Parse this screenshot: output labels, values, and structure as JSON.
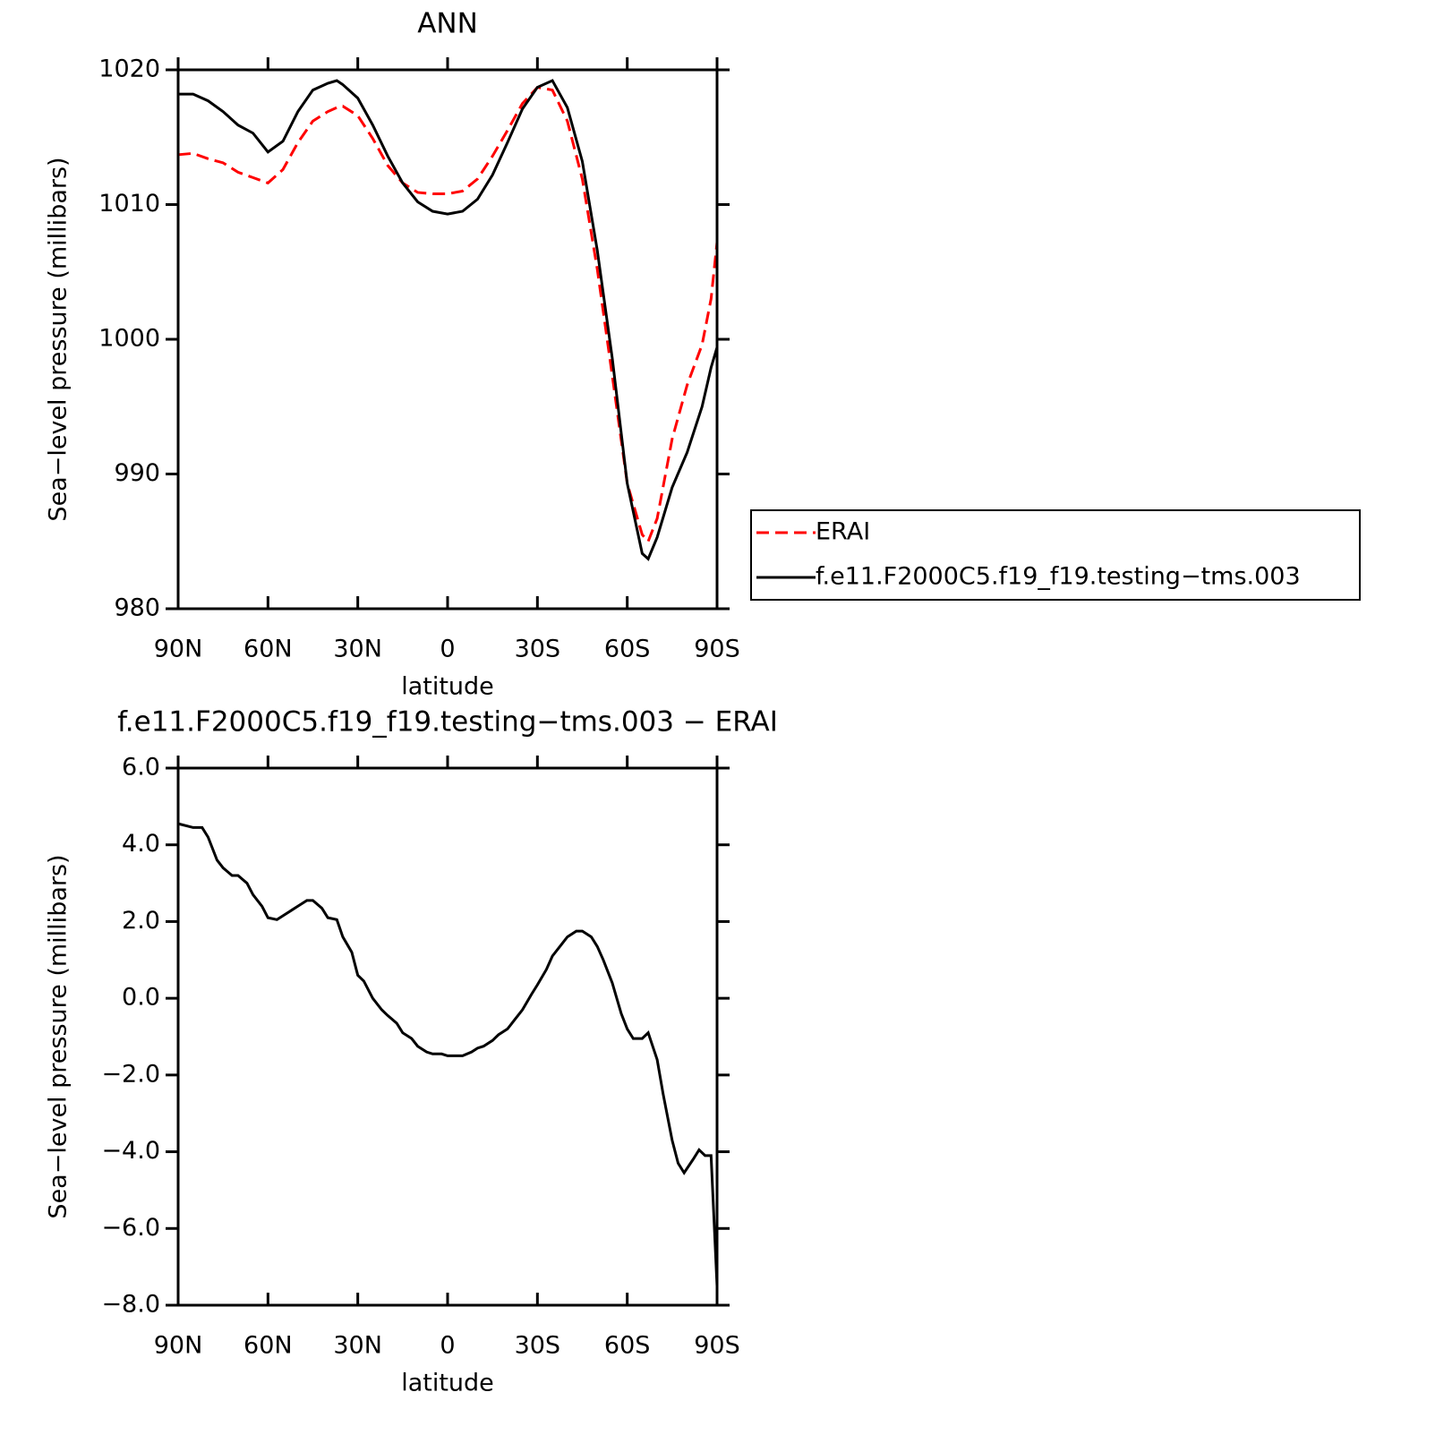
{
  "chart_data": [
    {
      "type": "line",
      "title": "ANN",
      "xlabel": "latitude",
      "ylabel": "Sea−level pressure (millibars)",
      "xlim": [
        90,
        -90
      ],
      "xticks": [
        {
          "value": 90,
          "label": "90N"
        },
        {
          "value": 60,
          "label": "60N"
        },
        {
          "value": 30,
          "label": "30N"
        },
        0,
        {
          "value": -30,
          "label": "30S"
        },
        {
          "value": -60,
          "label": "60S"
        },
        {
          "value": -90,
          "label": "90S"
        }
      ],
      "ylim": [
        980,
        1020
      ],
      "yticks": [
        980,
        990,
        1000,
        1010,
        1020
      ],
      "legend": "right",
      "x": [
        90,
        85,
        80,
        75,
        70,
        65,
        60,
        55,
        50,
        45,
        40,
        37,
        35,
        30,
        25,
        20,
        15,
        10,
        5,
        0,
        -5,
        -10,
        -15,
        -20,
        -25,
        -30,
        -35,
        -40,
        -45,
        -50,
        -55,
        -60,
        -65,
        -67,
        -70,
        -75,
        -80,
        -85,
        -88,
        -90
      ],
      "series": [
        {
          "name": "ERAI",
          "color": "#ff0000",
          "linestyle": "dashed",
          "values": [
            1013.7,
            1013.8,
            1013.4,
            1013.1,
            1012.4,
            1012.0,
            1011.6,
            1012.6,
            1014.6,
            1016.2,
            1016.9,
            1017.2,
            1017.3,
            1016.6,
            1014.9,
            1012.9,
            1011.6,
            1010.9,
            1010.8,
            1010.8,
            1011.0,
            1011.9,
            1013.6,
            1015.5,
            1017.5,
            1018.7,
            1018.5,
            1016.2,
            1011.9,
            1005.2,
            997.3,
            989.3,
            985.5,
            985.0,
            986.7,
            992.6,
            996.6,
            999.6,
            1003.0,
            1007.2
          ]
        },
        {
          "name": "f.e11.F2000C5.f19_f19.testing−tms.003",
          "color": "#000000",
          "linestyle": "solid",
          "values": [
            1018.2,
            1018.2,
            1017.7,
            1016.9,
            1015.9,
            1015.3,
            1013.9,
            1014.7,
            1016.9,
            1018.5,
            1019.0,
            1019.2,
            1018.9,
            1017.9,
            1015.9,
            1013.6,
            1011.6,
            1010.2,
            1009.5,
            1009.3,
            1009.5,
            1010.4,
            1012.2,
            1014.6,
            1017.1,
            1018.7,
            1019.2,
            1017.2,
            1013.2,
            1006.6,
            998.6,
            989.3,
            984.1,
            983.7,
            985.3,
            989.0,
            991.6,
            995.0,
            997.9,
            999.4
          ]
        }
      ]
    },
    {
      "type": "line",
      "title": "f.e11.F2000C5.f19_f19.testing−tms.003 − ERAI",
      "xlabel": "latitude",
      "ylabel": "Sea−level pressure (millibars)",
      "xlim": [
        90,
        -90
      ],
      "xticks": [
        {
          "value": 90,
          "label": "90N"
        },
        {
          "value": 60,
          "label": "60N"
        },
        {
          "value": 30,
          "label": "30N"
        },
        0,
        {
          "value": -30,
          "label": "30S"
        },
        {
          "value": -60,
          "label": "60S"
        },
        {
          "value": -90,
          "label": "90S"
        }
      ],
      "ylim": [
        -8,
        6
      ],
      "yticks": [
        {
          "value": -8,
          "label": "−8.0"
        },
        {
          "value": -6,
          "label": "−6.0"
        },
        {
          "value": -4,
          "label": "−4.0"
        },
        {
          "value": -2,
          "label": "−2.0"
        },
        {
          "value": 0,
          "label": "0.0"
        },
        {
          "value": 2,
          "label": "2.0"
        },
        {
          "value": 4,
          "label": "4.0"
        },
        {
          "value": 6,
          "label": "6.0"
        }
      ],
      "x": [
        90,
        85,
        82,
        80,
        77,
        75,
        72,
        70,
        67,
        65,
        62,
        60,
        57,
        55,
        52,
        50,
        47,
        45,
        42,
        40,
        37,
        35,
        32,
        30,
        28,
        25,
        22,
        20,
        17,
        15,
        12,
        10,
        7,
        5,
        2,
        0,
        -2,
        -5,
        -8,
        -10,
        -12,
        -15,
        -17,
        -20,
        -22,
        -25,
        -28,
        -30,
        -33,
        -35,
        -38,
        -40,
        -43,
        -45,
        -48,
        -50,
        -52,
        -55,
        -58,
        -60,
        -62,
        -65,
        -67,
        -70,
        -72,
        -75,
        -77,
        -79,
        -82,
        -84,
        -86,
        -88,
        -90
      ],
      "series": [
        {
          "color": "#000000",
          "linestyle": "solid",
          "values": [
            4.55,
            4.45,
            4.45,
            4.2,
            3.6,
            3.4,
            3.2,
            3.2,
            3.0,
            2.7,
            2.4,
            2.1,
            2.05,
            2.15,
            2.3,
            2.4,
            2.55,
            2.55,
            2.35,
            2.1,
            2.05,
            1.6,
            1.2,
            0.6,
            0.45,
            0.0,
            -0.3,
            -0.45,
            -0.65,
            -0.9,
            -1.05,
            -1.25,
            -1.4,
            -1.45,
            -1.45,
            -1.5,
            -1.5,
            -1.5,
            -1.4,
            -1.3,
            -1.25,
            -1.1,
            -0.95,
            -0.8,
            -0.6,
            -0.3,
            0.1,
            0.35,
            0.75,
            1.1,
            1.4,
            1.6,
            1.75,
            1.75,
            1.6,
            1.35,
            1.0,
            0.4,
            -0.4,
            -0.8,
            -1.05,
            -1.05,
            -0.9,
            -1.6,
            -2.5,
            -3.7,
            -4.3,
            -4.55,
            -4.2,
            -3.95,
            -4.1,
            -4.1,
            -7.5
          ]
        }
      ]
    }
  ]
}
